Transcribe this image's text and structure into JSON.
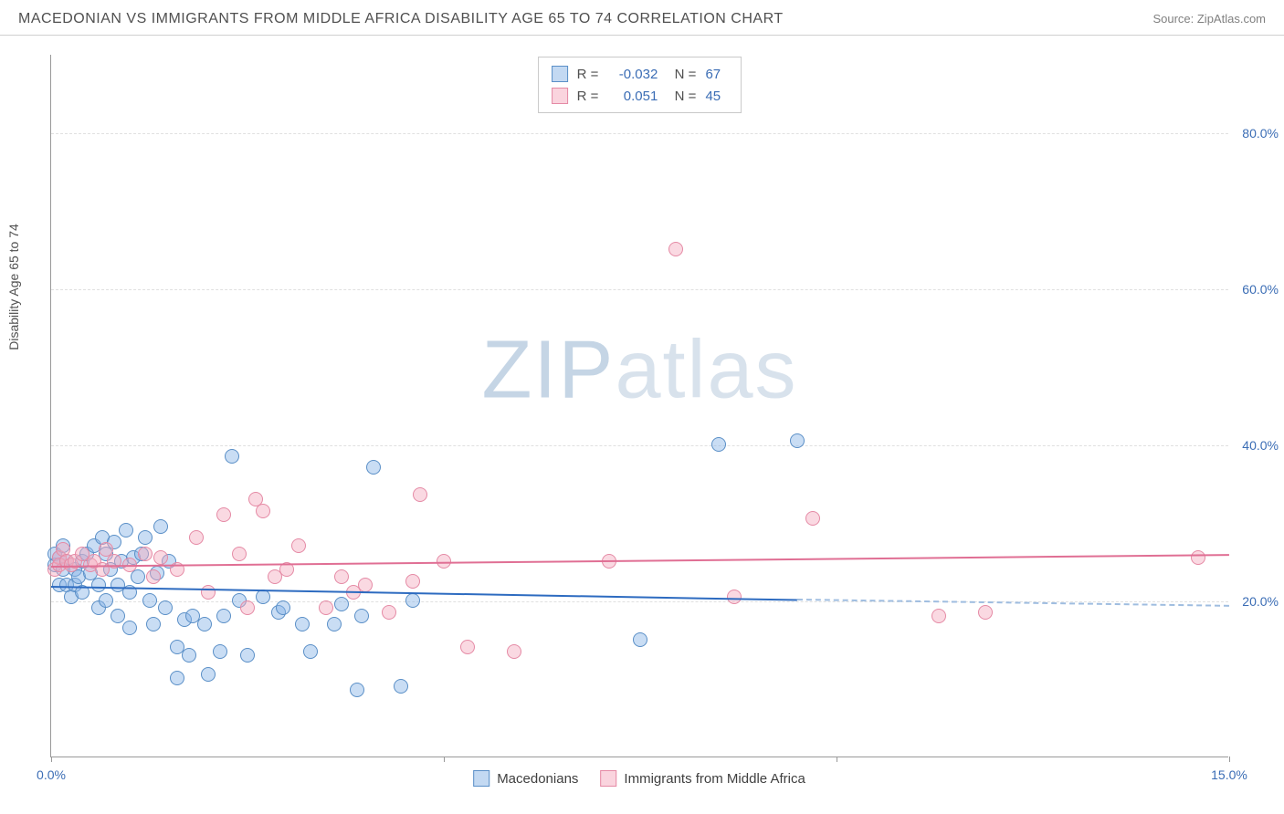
{
  "header": {
    "title": "MACEDONIAN VS IMMIGRANTS FROM MIDDLE AFRICA DISABILITY AGE 65 TO 74 CORRELATION CHART",
    "source": "Source: ZipAtlas.com"
  },
  "chart": {
    "type": "scatter",
    "y_axis_label": "Disability Age 65 to 74",
    "xlim": [
      0,
      15
    ],
    "ylim": [
      0,
      90
    ],
    "x_ticks": [
      0,
      5,
      10,
      15
    ],
    "x_tick_labels": [
      "0.0%",
      "",
      "",
      "15.0%"
    ],
    "y_ticks": [
      20,
      40,
      60,
      80
    ],
    "y_tick_labels": [
      "20.0%",
      "40.0%",
      "60.0%",
      "80.0%"
    ],
    "background_color": "#ffffff",
    "grid_color": "#e0e0e0",
    "marker_radius": 8,
    "series": [
      {
        "name": "Macedonians",
        "color_fill": "rgba(135,180,230,0.45)",
        "color_stroke": "#5a8fc7",
        "trend_color": "#2d6bc0",
        "R": "-0.032",
        "N": "67",
        "trend": {
          "x1": 0,
          "y1": 22.0,
          "x2": 9.5,
          "y2": 20.3,
          "dash_to_x": 15,
          "dash_to_y": 19.5
        },
        "points": [
          [
            0.05,
            24.5
          ],
          [
            0.05,
            26
          ],
          [
            0.1,
            25.5
          ],
          [
            0.1,
            22
          ],
          [
            0.15,
            24
          ],
          [
            0.15,
            27
          ],
          [
            0.2,
            25
          ],
          [
            0.2,
            22
          ],
          [
            0.25,
            20.5
          ],
          [
            0.3,
            24
          ],
          [
            0.3,
            22
          ],
          [
            0.35,
            23
          ],
          [
            0.4,
            25
          ],
          [
            0.4,
            21
          ],
          [
            0.45,
            26
          ],
          [
            0.5,
            23.5
          ],
          [
            0.55,
            27
          ],
          [
            0.6,
            22
          ],
          [
            0.6,
            19
          ],
          [
            0.65,
            28
          ],
          [
            0.7,
            26
          ],
          [
            0.7,
            20
          ],
          [
            0.75,
            24
          ],
          [
            0.8,
            27.5
          ],
          [
            0.85,
            22
          ],
          [
            0.85,
            18
          ],
          [
            0.9,
            25
          ],
          [
            0.95,
            29
          ],
          [
            1.0,
            16.5
          ],
          [
            1.0,
            21
          ],
          [
            1.05,
            25.5
          ],
          [
            1.1,
            23
          ],
          [
            1.15,
            26
          ],
          [
            1.2,
            28
          ],
          [
            1.25,
            20
          ],
          [
            1.3,
            17
          ],
          [
            1.35,
            23.5
          ],
          [
            1.4,
            29.5
          ],
          [
            1.45,
            19
          ],
          [
            1.5,
            25
          ],
          [
            1.6,
            10
          ],
          [
            1.6,
            14
          ],
          [
            1.7,
            17.5
          ],
          [
            1.75,
            13
          ],
          [
            1.8,
            18
          ],
          [
            1.95,
            17
          ],
          [
            2.0,
            10.5
          ],
          [
            2.15,
            13.5
          ],
          [
            2.2,
            18
          ],
          [
            2.3,
            38.5
          ],
          [
            2.4,
            20
          ],
          [
            2.5,
            13
          ],
          [
            2.7,
            20.5
          ],
          [
            2.9,
            18.5
          ],
          [
            2.95,
            19
          ],
          [
            3.2,
            17
          ],
          [
            3.3,
            13.5
          ],
          [
            3.6,
            17
          ],
          [
            3.7,
            19.5
          ],
          [
            3.9,
            8.5
          ],
          [
            3.95,
            18
          ],
          [
            4.1,
            37
          ],
          [
            4.45,
            9
          ],
          [
            4.6,
            20
          ],
          [
            7.5,
            15
          ],
          [
            8.5,
            40
          ],
          [
            9.5,
            40.5
          ]
        ]
      },
      {
        "name": "Immigrants from Middle Africa",
        "color_fill": "rgba(245,170,190,0.45)",
        "color_stroke": "#e58aa5",
        "trend_color": "#e06f94",
        "R": "0.051",
        "N": "45",
        "trend": {
          "x1": 0,
          "y1": 24.5,
          "x2": 15,
          "y2": 26.0
        },
        "points": [
          [
            0.05,
            24
          ],
          [
            0.1,
            25.5
          ],
          [
            0.1,
            24.5
          ],
          [
            0.15,
            26.5
          ],
          [
            0.2,
            25
          ],
          [
            0.25,
            24.5
          ],
          [
            0.3,
            25
          ],
          [
            0.4,
            26
          ],
          [
            0.5,
            24.5
          ],
          [
            0.55,
            25
          ],
          [
            0.65,
            24
          ],
          [
            0.7,
            26.5
          ],
          [
            0.8,
            25
          ],
          [
            1.0,
            24.5
          ],
          [
            1.2,
            26
          ],
          [
            1.3,
            23
          ],
          [
            1.4,
            25.5
          ],
          [
            1.6,
            24
          ],
          [
            1.85,
            28
          ],
          [
            2.0,
            21
          ],
          [
            2.2,
            31
          ],
          [
            2.4,
            26
          ],
          [
            2.5,
            19
          ],
          [
            2.6,
            33
          ],
          [
            2.7,
            31.5
          ],
          [
            2.85,
            23
          ],
          [
            3.0,
            24
          ],
          [
            3.15,
            27
          ],
          [
            3.5,
            19
          ],
          [
            3.7,
            23
          ],
          [
            3.85,
            21
          ],
          [
            4.0,
            22
          ],
          [
            4.3,
            18.5
          ],
          [
            4.6,
            22.5
          ],
          [
            4.7,
            33.5
          ],
          [
            5.0,
            25
          ],
          [
            5.3,
            14
          ],
          [
            5.9,
            13.5
          ],
          [
            7.1,
            25
          ],
          [
            7.95,
            65
          ],
          [
            8.7,
            20.5
          ],
          [
            9.7,
            30.5
          ],
          [
            11.3,
            18
          ],
          [
            11.9,
            18.5
          ],
          [
            14.6,
            25.5
          ]
        ]
      }
    ],
    "bottom_legend": [
      {
        "swatch": "blue",
        "label": "Macedonians"
      },
      {
        "swatch": "pink",
        "label": "Immigrants from Middle Africa"
      }
    ],
    "watermark": {
      "prefix": "ZIP",
      "suffix": "atlas"
    }
  }
}
